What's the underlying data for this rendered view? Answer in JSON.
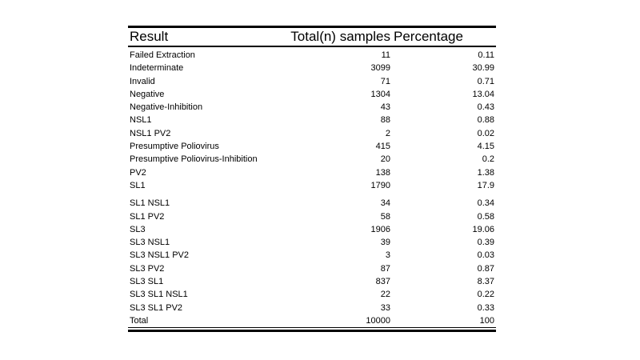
{
  "table": {
    "columns": [
      "Result",
      "Total(n) samples",
      "Percentage"
    ],
    "rows": [
      {
        "result": "Failed Extraction",
        "total": "11",
        "percentage": "0.11"
      },
      {
        "result": "Indeterminate",
        "total": "3099",
        "percentage": "30.99"
      },
      {
        "result": "Invalid",
        "total": "71",
        "percentage": "0.71"
      },
      {
        "result": "Negative",
        "total": "1304",
        "percentage": "13.04"
      },
      {
        "result": "Negative-Inhibition",
        "total": "43",
        "percentage": "0.43"
      },
      {
        "result": "NSL1",
        "total": "88",
        "percentage": "0.88"
      },
      {
        "result": "NSL1 PV2",
        "total": "2",
        "percentage": "0.02"
      },
      {
        "result": "Presumptive Poliovirus",
        "total": "415",
        "percentage": "4.15"
      },
      {
        "result": "Presumptive Poliovirus-Inhibition",
        "total": "20",
        "percentage": "0.2"
      },
      {
        "result": "PV2",
        "total": "138",
        "percentage": "1.38"
      },
      {
        "result": "SL1",
        "total": "1790",
        "percentage": "17.9"
      },
      {
        "result": "SL1 NSL1",
        "total": "34",
        "percentage": "0.34",
        "gap_before": true
      },
      {
        "result": "SL1 PV2",
        "total": "58",
        "percentage": "0.58"
      },
      {
        "result": "SL3",
        "total": "1906",
        "percentage": "19.06"
      },
      {
        "result": "SL3 NSL1",
        "total": "39",
        "percentage": "0.39"
      },
      {
        "result": "SL3 NSL1 PV2",
        "total": "3",
        "percentage": "0.03"
      },
      {
        "result": "SL3 PV2",
        "total": "87",
        "percentage": "0.87"
      },
      {
        "result": "SL3 SL1",
        "total": "837",
        "percentage": "8.37"
      },
      {
        "result": "SL3 SL1 NSL1",
        "total": "22",
        "percentage": "0.22"
      },
      {
        "result": "SL3 SL1 PV2",
        "total": "33",
        "percentage": "0.33"
      },
      {
        "result": "Total",
        "total": "10000",
        "percentage": "100",
        "is_total": true
      }
    ]
  }
}
